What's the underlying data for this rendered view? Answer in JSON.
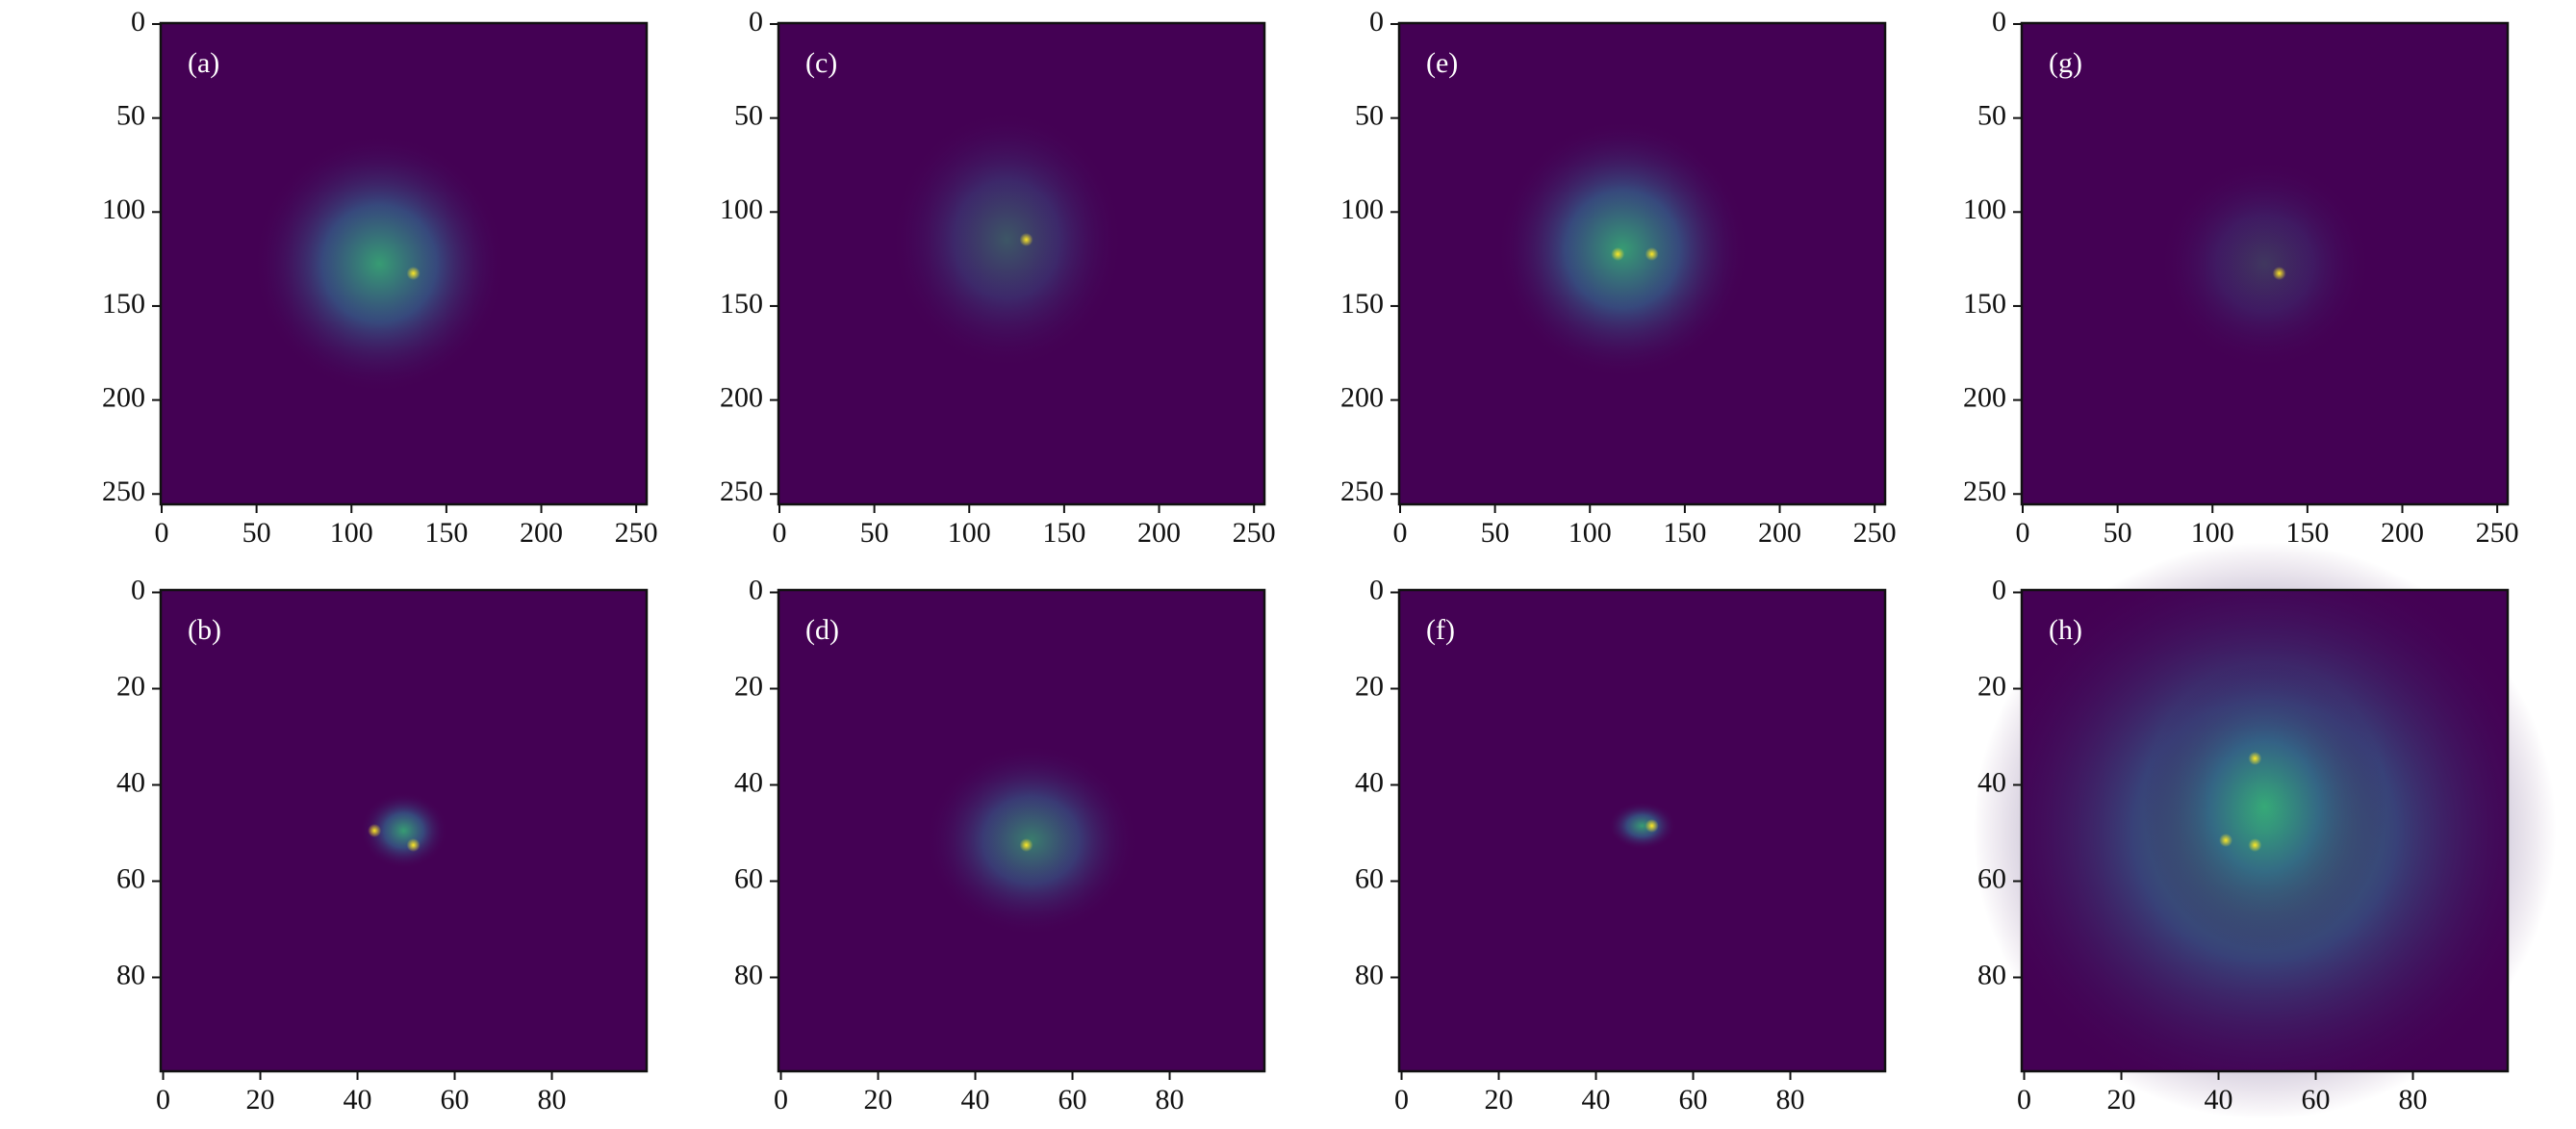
{
  "chart_data": [
    {
      "type": "image",
      "label": "(a)",
      "xlim": [
        -0.5,
        255.5
      ],
      "ylim": [
        255.5,
        -0.5
      ],
      "xticks": [
        0,
        50,
        100,
        150,
        200,
        250
      ],
      "yticks": [
        0,
        50,
        100,
        150,
        200,
        250
      ],
      "color": "#440154"
    },
    {
      "type": "image",
      "label": "(b)",
      "xlim": [
        -0.5,
        99.5
      ],
      "ylim": [
        99.5,
        -0.5
      ],
      "xticks": [
        0,
        20,
        40,
        60,
        80
      ],
      "yticks": [
        0,
        20,
        40,
        60,
        80
      ],
      "color": "#440154"
    },
    {
      "type": "image",
      "label": "(c)",
      "xlim": [
        -0.5,
        255.5
      ],
      "ylim": [
        255.5,
        -0.5
      ],
      "xticks": [
        0,
        50,
        100,
        150,
        200,
        250
      ],
      "yticks": [
        0,
        50,
        100,
        150,
        200,
        250
      ],
      "color": "#440154"
    },
    {
      "type": "image",
      "label": "(d)",
      "xlim": [
        -0.5,
        99.5
      ],
      "ylim": [
        99.5,
        -0.5
      ],
      "xticks": [
        0,
        20,
        40,
        60,
        80
      ],
      "yticks": [
        0,
        20,
        40,
        60,
        80
      ],
      "color": "#440154"
    },
    {
      "type": "image",
      "label": "(e)",
      "xlim": [
        -0.5,
        255.5
      ],
      "ylim": [
        255.5,
        -0.5
      ],
      "xticks": [
        0,
        50,
        100,
        150,
        200,
        250
      ],
      "yticks": [
        0,
        50,
        100,
        150,
        200,
        250
      ],
      "color": "#440154"
    },
    {
      "type": "image",
      "label": "(f)",
      "xlim": [
        -0.5,
        99.5
      ],
      "ylim": [
        99.5,
        -0.5
      ],
      "xticks": [
        0,
        20,
        40,
        60,
        80
      ],
      "yticks": [
        0,
        20,
        40,
        60,
        80
      ],
      "color": "#440154"
    },
    {
      "type": "image",
      "label": "(g)",
      "xlim": [
        -0.5,
        255.5
      ],
      "ylim": [
        255.5,
        -0.5
      ],
      "xticks": [
        0,
        50,
        100,
        150,
        200,
        250
      ],
      "yticks": [
        0,
        50,
        100,
        150,
        200,
        250
      ],
      "color": "#440154"
    },
    {
      "type": "image",
      "label": "(h)",
      "xlim": [
        -0.5,
        99.5
      ],
      "ylim": [
        99.5,
        -0.5
      ],
      "xticks": [
        0,
        20,
        40,
        60,
        80
      ],
      "yticks": [
        0,
        20,
        40,
        60,
        80
      ],
      "color": "#440154"
    }
  ]
}
